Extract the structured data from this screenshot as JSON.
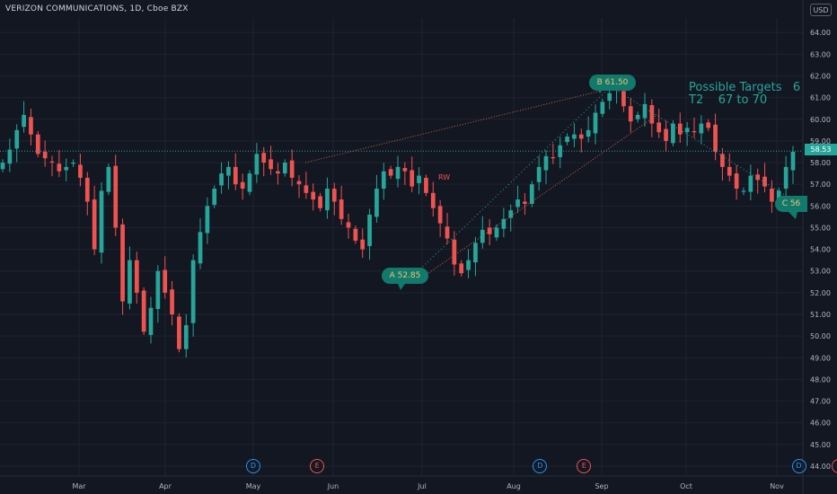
{
  "header": {
    "title": "VERIZON COMMUNICATIONS, 1D, Cboe BZX",
    "currency": "USD"
  },
  "annotations": {
    "targets_line1": "Possible Targets   6",
    "targets_line2": "T2    67 to 70",
    "rw": "RW",
    "point_a": "A  52.85",
    "point_b": "B  61.50",
    "point_c": "C  56"
  },
  "last_price": "58.53",
  "events": [
    {
      "type": "D",
      "month_index": 2
    },
    {
      "type": "E",
      "month_index": 2.8
    },
    {
      "type": "D",
      "month_index": 5.3
    },
    {
      "type": "E",
      "month_index": 5.8
    },
    {
      "type": "D",
      "month_index": 8.25
    },
    {
      "type": "E",
      "month_index": 8.7
    }
  ],
  "colors": {
    "up": "#26a69a",
    "down": "#ef5350",
    "background": "#131722",
    "grid": "#1f2330",
    "pattern_line": "#c1693f",
    "abc_line": "#26a69a"
  },
  "chart_data": {
    "type": "candlestick",
    "title": "VERIZON COMMUNICATIONS, 1D, Cboe BZX",
    "xlabel": "",
    "ylabel": "",
    "x_ticks": [
      "Mar",
      "Apr",
      "May",
      "Jun",
      "Jul",
      "Aug",
      "Sep",
      "Oct",
      "Nov"
    ],
    "y_ticks": [
      "44.00",
      "45.00",
      "46.00",
      "47.00",
      "48.00",
      "49.00",
      "50.00",
      "51.00",
      "52.00",
      "53.00",
      "54.00",
      "55.00",
      "56.00",
      "57.00",
      "58.00",
      "59.00",
      "60.00",
      "61.00",
      "62.00",
      "63.00",
      "64.00"
    ],
    "ylim": [
      43.6,
      65.1
    ],
    "grid": true,
    "close_series": [
      58.0,
      58.6,
      59.5,
      60.2,
      59.3,
      58.4,
      58.2,
      58.0,
      57.6,
      57.8,
      58.0,
      57.3,
      56.2,
      54.0,
      56.7,
      57.8,
      55.0,
      51.6,
      53.5,
      52.0,
      50.2,
      51.3,
      53.0,
      52.0,
      51.0,
      49.4,
      50.5,
      53.5,
      54.8,
      56.0,
      56.8,
      57.5,
      57.8,
      57.0,
      56.8,
      57.5,
      58.4,
      58.0,
      57.7,
      57.5,
      58.0,
      57.3,
      57.0,
      56.6,
      56.3,
      55.9,
      56.8,
      56.2,
      55.4,
      55.0,
      54.4,
      54.0,
      55.6,
      56.8,
      57.6,
      57.4,
      57.8,
      57.6,
      56.9,
      57.4,
      56.6,
      55.9,
      55.2,
      54.5,
      53.3,
      52.9,
      53.5,
      54.3,
      54.9,
      54.7,
      55.0,
      55.4,
      55.8,
      56.3,
      56.1,
      57.0,
      57.8,
      58.3,
      58.2,
      58.8,
      59.2,
      59.3,
      59.1,
      59.5,
      60.3,
      60.8,
      61.2,
      61.4,
      60.6,
      59.9,
      60.2,
      60.7,
      59.8,
      59.4,
      59.0,
      59.8,
      59.3,
      59.6,
      59.4,
      59.8,
      59.6,
      58.5,
      57.8,
      57.4,
      56.8,
      56.7,
      57.4,
      57.2,
      56.9,
      56.2,
      56.7,
      57.8,
      58.5
    ],
    "pattern_points": [
      {
        "label": "A",
        "value": 52.85,
        "month": "Jul"
      },
      {
        "label": "B",
        "value": 61.5,
        "month": "Sep"
      },
      {
        "label": "C",
        "value": 56,
        "month": "Nov"
      }
    ],
    "last_price": 58.53
  }
}
